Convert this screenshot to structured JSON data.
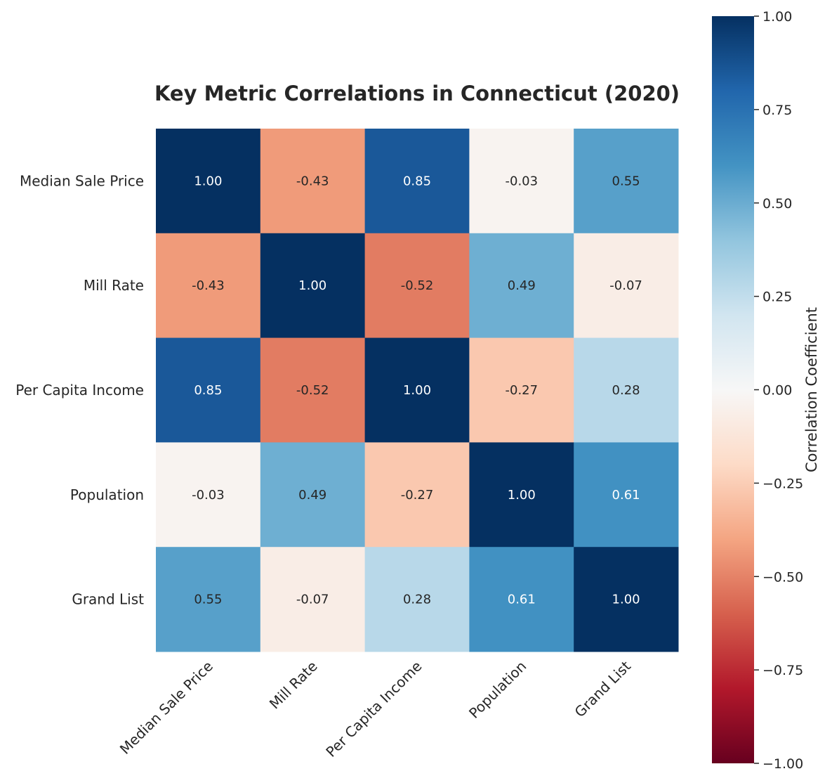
{
  "chart_data": {
    "type": "heatmap",
    "title": "Key Metric Correlations in Connecticut (2020)",
    "rows": [
      "Median Sale Price",
      "Mill Rate",
      "Per Capita Income",
      "Population",
      "Grand List"
    ],
    "columns": [
      "Median Sale Price",
      "Mill Rate",
      "Per Capita Income",
      "Population",
      "Grand List"
    ],
    "values": [
      [
        1.0,
        -0.43,
        0.85,
        -0.03,
        0.55
      ],
      [
        -0.43,
        1.0,
        -0.52,
        0.49,
        -0.07
      ],
      [
        0.85,
        -0.52,
        1.0,
        -0.27,
        0.28
      ],
      [
        -0.03,
        0.49,
        -0.27,
        1.0,
        0.61
      ],
      [
        0.55,
        -0.07,
        0.28,
        0.61,
        1.0
      ]
    ],
    "value_format": "2 decimals",
    "colormap": "RdBu",
    "vmin": -1.0,
    "vmax": 1.0,
    "colorbar": {
      "label": "Correlation Coefficient",
      "ticks": [
        1.0,
        0.75,
        0.5,
        0.25,
        0.0,
        -0.25,
        -0.5,
        -0.75,
        -1.0
      ],
      "tick_labels": [
        "1.00",
        "0.75",
        "0.50",
        "0.25",
        "0.00",
        "−0.25",
        "−0.50",
        "−0.75",
        "−1.00"
      ]
    }
  }
}
